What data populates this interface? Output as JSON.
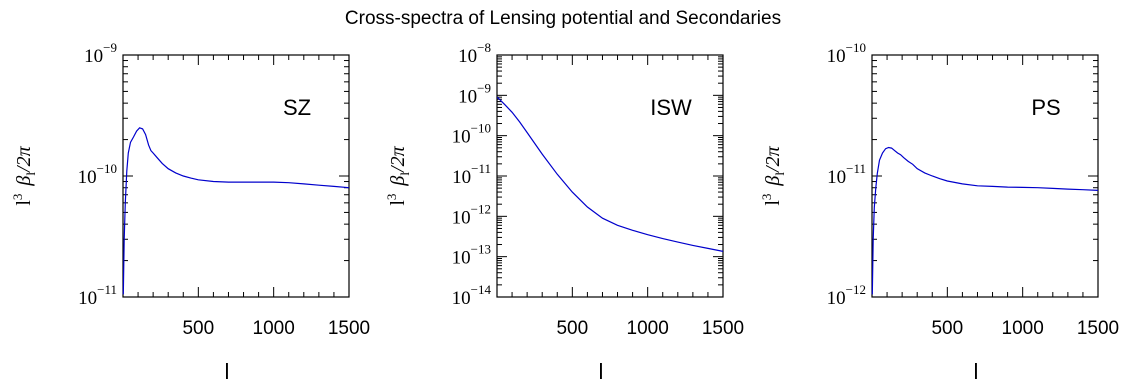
{
  "title": "Cross-spectra of Lensing potential and Secondaries",
  "chart_data": [
    {
      "type": "line",
      "label": "SZ",
      "xlabel": "l",
      "ylabel_parts": {
        "prefix": "l",
        "prefix_exp": "3",
        "symbol": "β",
        "sub": "l",
        "suffix": "/2π"
      },
      "xlim": [
        0,
        1500
      ],
      "ylim": [
        1e-11,
        1e-09
      ],
      "yscale": "log",
      "xticks": [
        500,
        1000,
        1500
      ],
      "ytick_labels": [
        {
          "base": "10",
          "exp": "−9",
          "value": 1e-09
        },
        {
          "base": "10",
          "exp": "−10",
          "value": 1e-10
        },
        {
          "base": "10",
          "exp": "−11",
          "value": 1e-11
        }
      ],
      "series": [
        {
          "x": [
            2,
            8,
            15,
            25,
            35,
            50,
            70,
            90,
            110,
            130,
            150,
            170,
            185,
            200,
            230,
            260,
            300,
            350,
            400,
            450,
            500,
            600,
            700,
            800,
            900,
            1000,
            1100,
            1200,
            1300,
            1400,
            1500
          ],
          "y": [
            1.05e-11,
            3e-11,
            6e-11,
            1.1e-10,
            1.55e-10,
            1.9e-10,
            2.1e-10,
            2.35e-10,
            2.5e-10,
            2.45e-10,
            2.2e-10,
            1.8e-10,
            1.62e-10,
            1.55e-10,
            1.4e-10,
            1.27e-10,
            1.15e-10,
            1.06e-10,
            1e-10,
            9.6e-11,
            9.3e-11,
            9e-11,
            8.9e-11,
            8.9e-11,
            8.9e-11,
            8.9e-11,
            8.8e-11,
            8.6e-11,
            8.4e-11,
            8.2e-11,
            8e-11
          ]
        }
      ]
    },
    {
      "type": "line",
      "label": "ISW",
      "xlabel": "l",
      "ylabel_parts": {
        "prefix": "l",
        "prefix_exp": "3",
        "symbol": "β",
        "sub": "l",
        "suffix": "/2π"
      },
      "xlim": [
        0,
        1500
      ],
      "ylim": [
        1e-14,
        1e-08
      ],
      "yscale": "log",
      "xticks": [
        500,
        1000,
        1500
      ],
      "ytick_labels": [
        {
          "base": "10",
          "exp": "−8",
          "value": 1e-08
        },
        {
          "base": "10",
          "exp": "−9",
          "value": 1e-09
        },
        {
          "base": "10",
          "exp": "−10",
          "value": 1e-10
        },
        {
          "base": "10",
          "exp": "−11",
          "value": 1e-11
        },
        {
          "base": "10",
          "exp": "−12",
          "value": 1e-12
        },
        {
          "base": "10",
          "exp": "−13",
          "value": 1e-13
        },
        {
          "base": "10",
          "exp": "−14",
          "value": 1e-14
        }
      ],
      "series": [
        {
          "x": [
            2,
            50,
            100,
            150,
            200,
            300,
            400,
            500,
            600,
            700,
            800,
            900,
            1000,
            1100,
            1200,
            1300,
            1400,
            1500
          ],
          "y": [
            9e-10,
            6e-10,
            3.8e-10,
            2.2e-10,
            1.2e-10,
            3.5e-11,
            1.1e-11,
            4e-12,
            1.7e-12,
            9e-13,
            6e-13,
            4.5e-13,
            3.5e-13,
            2.8e-13,
            2.3e-13,
            1.9e-13,
            1.6e-13,
            1.35e-13
          ]
        }
      ]
    },
    {
      "type": "line",
      "label": "PS",
      "xlabel": "l",
      "ylabel_parts": {
        "prefix": "l",
        "prefix_exp": "3",
        "symbol": "β",
        "sub": "l",
        "suffix": "/2π"
      },
      "xlim": [
        0,
        1500
      ],
      "ylim": [
        1e-12,
        1e-10
      ],
      "yscale": "log",
      "xticks": [
        500,
        1000,
        1500
      ],
      "ytick_labels": [
        {
          "base": "10",
          "exp": "−10",
          "value": 1e-10
        },
        {
          "base": "10",
          "exp": "−11",
          "value": 1e-11
        },
        {
          "base": "10",
          "exp": "−12",
          "value": 1e-12
        }
      ],
      "series": [
        {
          "x": [
            2,
            8,
            15,
            25,
            35,
            50,
            70,
            90,
            110,
            130,
            150,
            170,
            190,
            210,
            240,
            270,
            300,
            350,
            400,
            450,
            500,
            600,
            700,
            800,
            900,
            1000,
            1100,
            1200,
            1300,
            1400,
            1500
          ],
          "y": [
            1.05e-12,
            3e-12,
            5.5e-12,
            8e-12,
            1.05e-11,
            1.35e-11,
            1.55e-11,
            1.68e-11,
            1.72e-11,
            1.7e-11,
            1.62e-11,
            1.55e-11,
            1.5e-11,
            1.42e-11,
            1.32e-11,
            1.25e-11,
            1.15e-11,
            1.06e-11,
            1e-11,
            9.5e-12,
            9.1e-12,
            8.6e-12,
            8.3e-12,
            8.2e-12,
            8.1e-12,
            8.05e-12,
            8e-12,
            7.9e-12,
            7.8e-12,
            7.7e-12,
            7.6e-12
          ]
        }
      ]
    }
  ]
}
